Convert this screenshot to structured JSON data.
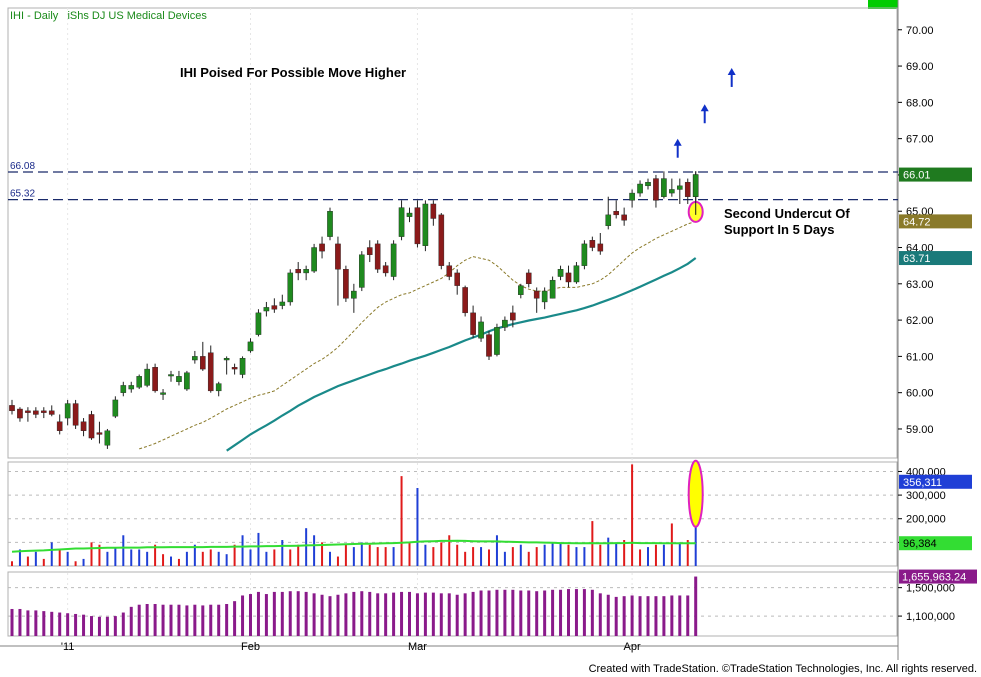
{
  "header": {
    "symbol": "IHI - Daily",
    "name": "iShs DJ US Medical Devices"
  },
  "annotations": {
    "headline": "IHI Poised For Possible Move Higher",
    "note_line1": "Second Undercut Of",
    "note_line2": "Support In 5 Days"
  },
  "credit": "Created with TradeStation. ©TradeStation Technologies, Inc. All rights reserved.",
  "colors": {
    "up": "#1f8a1f",
    "down": "#8b1a1a",
    "ma_long": "#1a8a8a",
    "ma_short": "#8a7a2a",
    "support_line": "#1a2a6a",
    "vol_avg": "#33dd33",
    "vol_up": "#1f3fd6",
    "vol_down": "#e01a1a",
    "osc": "#8a1a8a",
    "arrow": "#1030c8",
    "highlight": "#ffff00",
    "highlight_border": "#e020c0"
  },
  "chart_data": [
    {
      "type": "candlestick",
      "title": "IHI - Daily  iShs DJ US Medical Devices",
      "x_tick_labels": [
        "'11",
        "Feb",
        "Mar",
        "Apr"
      ],
      "y_ticks": [
        59.0,
        60.0,
        61.0,
        62.0,
        63.0,
        64.0,
        65.0,
        66.0,
        67.0,
        68.0,
        69.0,
        70.0
      ],
      "y_tick_labels": [
        "59.00",
        "60.00",
        "61.00",
        "62.00",
        "63.00",
        "64.00",
        "65.00",
        "66.00",
        "67.00",
        "68.00",
        "69.00",
        "70.00"
      ],
      "ylim": [
        58.2,
        70.6
      ],
      "support_lines": [
        {
          "label": "66.08",
          "value": 66.08
        },
        {
          "label": "65.32",
          "value": 65.32
        }
      ],
      "last_value_labels": [
        {
          "label": "66.01",
          "value": 66.01,
          "color": "#1f7a1f"
        },
        {
          "label": "64.72",
          "value": 64.72,
          "color": "#8a7a2a"
        },
        {
          "label": "63.71",
          "value": 63.71,
          "color": "#1a7a7a"
        }
      ],
      "bars": [
        [
          59.65,
          59.8,
          59.4,
          59.5
        ],
        [
          59.55,
          59.6,
          59.2,
          59.3
        ],
        [
          59.5,
          59.6,
          59.2,
          59.45
        ],
        [
          59.5,
          59.6,
          59.3,
          59.4
        ],
        [
          59.5,
          59.6,
          59.3,
          59.45
        ],
        [
          59.5,
          59.65,
          59.35,
          59.4
        ],
        [
          59.2,
          59.4,
          58.85,
          58.95
        ],
        [
          59.3,
          59.8,
          59.1,
          59.7
        ],
        [
          59.7,
          59.8,
          59.0,
          59.1
        ],
        [
          59.2,
          59.3,
          58.8,
          58.95
        ],
        [
          59.4,
          59.5,
          58.7,
          58.75
        ],
        [
          58.9,
          59.2,
          58.6,
          58.85
        ],
        [
          58.55,
          59.0,
          58.45,
          58.95
        ],
        [
          59.35,
          59.9,
          59.3,
          59.8
        ],
        [
          60.0,
          60.3,
          59.9,
          60.2
        ],
        [
          60.1,
          60.3,
          60.0,
          60.2
        ],
        [
          60.15,
          60.5,
          60.1,
          60.45
        ],
        [
          60.2,
          60.8,
          60.15,
          60.65
        ],
        [
          60.7,
          60.8,
          60.0,
          60.05
        ],
        [
          59.95,
          60.1,
          59.8,
          60.0
        ],
        [
          60.5,
          60.6,
          60.3,
          60.5
        ],
        [
          60.3,
          60.6,
          60.2,
          60.45
        ],
        [
          60.1,
          60.6,
          60.05,
          60.55
        ],
        [
          60.9,
          61.15,
          60.8,
          61.0
        ],
        [
          61.0,
          61.4,
          60.6,
          60.65
        ],
        [
          61.1,
          61.3,
          60.0,
          60.05
        ],
        [
          60.05,
          60.3,
          59.9,
          60.25
        ],
        [
          60.9,
          61.0,
          60.5,
          60.95
        ],
        [
          60.7,
          60.8,
          60.5,
          60.65
        ],
        [
          60.5,
          61.0,
          60.4,
          60.95
        ],
        [
          61.15,
          61.5,
          61.1,
          61.4
        ],
        [
          61.6,
          62.3,
          61.55,
          62.2
        ],
        [
          62.25,
          62.5,
          62.1,
          62.35
        ],
        [
          62.4,
          62.6,
          62.2,
          62.3
        ],
        [
          62.4,
          62.7,
          62.3,
          62.5
        ],
        [
          62.5,
          63.4,
          62.4,
          63.3
        ],
        [
          63.4,
          63.6,
          63.1,
          63.3
        ],
        [
          63.3,
          63.5,
          63.1,
          63.4
        ],
        [
          63.35,
          64.1,
          63.3,
          64.0
        ],
        [
          64.1,
          64.3,
          63.7,
          63.9
        ],
        [
          64.3,
          65.1,
          64.2,
          65.0
        ],
        [
          64.1,
          64.3,
          62.4,
          63.4
        ],
        [
          63.4,
          63.5,
          62.5,
          62.6
        ],
        [
          62.6,
          63.0,
          62.2,
          62.8
        ],
        [
          62.9,
          63.9,
          62.8,
          63.8
        ],
        [
          64.0,
          64.2,
          63.6,
          63.8
        ],
        [
          64.1,
          64.2,
          63.3,
          63.4
        ],
        [
          63.5,
          63.6,
          63.2,
          63.3
        ],
        [
          63.2,
          64.2,
          63.1,
          64.1
        ],
        [
          64.3,
          65.3,
          64.2,
          65.1
        ],
        [
          64.85,
          65.1,
          64.7,
          64.95
        ],
        [
          65.1,
          65.3,
          64.0,
          64.1
        ],
        [
          64.05,
          65.3,
          63.9,
          65.2
        ],
        [
          65.2,
          65.3,
          64.6,
          64.8
        ],
        [
          64.9,
          64.95,
          63.4,
          63.5
        ],
        [
          63.5,
          63.6,
          63.1,
          63.2
        ],
        [
          63.3,
          63.4,
          62.7,
          62.95
        ],
        [
          62.9,
          62.95,
          62.1,
          62.2
        ],
        [
          62.2,
          62.4,
          61.5,
          61.6
        ],
        [
          61.5,
          62.1,
          61.4,
          61.95
        ],
        [
          61.6,
          61.7,
          60.9,
          61.0
        ],
        [
          61.05,
          61.9,
          61.0,
          61.8
        ],
        [
          61.8,
          62.1,
          61.7,
          62.0
        ],
        [
          62.2,
          62.4,
          61.8,
          62.0
        ],
        [
          62.7,
          63.0,
          62.6,
          62.95
        ],
        [
          63.3,
          63.4,
          62.9,
          63.0
        ],
        [
          62.8,
          62.9,
          62.2,
          62.6
        ],
        [
          62.5,
          62.9,
          62.3,
          62.8
        ],
        [
          62.6,
          63.2,
          62.6,
          63.1
        ],
        [
          63.2,
          63.5,
          63.1,
          63.4
        ],
        [
          63.3,
          63.5,
          62.9,
          63.05
        ],
        [
          63.05,
          63.6,
          63.0,
          63.5
        ],
        [
          63.5,
          64.2,
          63.4,
          64.1
        ],
        [
          64.2,
          64.3,
          63.9,
          64.0
        ],
        [
          64.1,
          64.4,
          63.8,
          63.9
        ],
        [
          64.6,
          65.4,
          64.5,
          64.9
        ],
        [
          65.0,
          65.3,
          64.8,
          64.9
        ],
        [
          64.9,
          65.1,
          64.6,
          64.75
        ],
        [
          65.3,
          65.6,
          65.1,
          65.5
        ],
        [
          65.5,
          65.85,
          65.4,
          65.75
        ],
        [
          65.7,
          65.9,
          65.6,
          65.8
        ],
        [
          65.9,
          66.0,
          65.1,
          65.3
        ],
        [
          65.4,
          66.1,
          65.35,
          65.9
        ],
        [
          65.5,
          65.9,
          65.4,
          65.6
        ],
        [
          65.6,
          65.9,
          65.2,
          65.7
        ],
        [
          65.8,
          65.9,
          65.2,
          65.4
        ],
        [
          65.4,
          66.1,
          64.9,
          66.01
        ]
      ],
      "ma_long_values": [
        58.4,
        58.55,
        58.7,
        58.85,
        58.98,
        59.1,
        59.23,
        59.37,
        59.5,
        59.64,
        59.76,
        59.88,
        59.98,
        60.08,
        60.18,
        60.26,
        60.34,
        60.42,
        60.5,
        60.58,
        60.65,
        60.73,
        60.8,
        60.88,
        60.95,
        61.02,
        61.1,
        61.18,
        61.26,
        61.35,
        61.44,
        61.52,
        61.6,
        61.69,
        61.77,
        61.83,
        61.89,
        61.94,
        61.99,
        62.03,
        62.07,
        62.12,
        62.17,
        62.22,
        62.27,
        62.33,
        62.4,
        62.48,
        62.56,
        62.64,
        62.73,
        62.82,
        62.92,
        63.02,
        63.12,
        63.22,
        63.32,
        63.43,
        63.55,
        63.71
      ],
      "ma_long_start": 27,
      "ma_short_values": [
        58.45,
        58.52,
        58.6,
        58.7,
        58.8,
        58.9,
        59.0,
        59.1,
        59.18,
        59.3,
        59.42,
        59.55,
        59.65,
        59.75,
        59.85,
        59.93,
        59.98,
        60.05,
        60.2,
        60.35,
        60.5,
        60.65,
        60.8,
        60.92,
        61.07,
        61.25,
        61.47,
        61.7,
        61.93,
        62.15,
        62.35,
        62.5,
        62.6,
        62.7,
        62.75,
        62.85,
        62.95,
        63.05,
        63.15,
        63.3,
        63.5,
        63.65,
        63.75,
        63.7,
        63.65,
        63.5,
        63.3,
        63.1,
        62.95,
        62.85,
        62.8,
        62.8,
        62.85,
        62.9,
        62.9,
        62.9,
        62.95,
        63.0,
        63.1,
        63.25,
        63.45,
        63.65,
        63.85,
        64.0,
        64.12,
        64.25,
        64.35,
        64.45,
        64.55,
        64.65,
        64.72
      ],
      "ma_short_start": 16,
      "arrows_after_last": [
        66.75,
        67.7,
        68.7
      ]
    },
    {
      "type": "bar",
      "name": "Volume",
      "y_ticks": [
        100000,
        200000,
        300000,
        400000
      ],
      "y_tick_labels": [
        "",
        "200,000",
        "300,000",
        "400,000"
      ],
      "ylim": [
        0,
        440000
      ],
      "last_value_labels": [
        {
          "label": "356,311",
          "value": 356311,
          "color": "#1f3fd6"
        },
        {
          "label": "96,384",
          "value": 96384,
          "color": "#33dd33"
        }
      ],
      "values": [
        20000,
        70000,
        40000,
        60000,
        30000,
        100000,
        70000,
        60000,
        20000,
        30000,
        100000,
        90000,
        60000,
        80000,
        130000,
        70000,
        70000,
        60000,
        90000,
        50000,
        40000,
        30000,
        60000,
        90000,
        60000,
        70000,
        60000,
        50000,
        90000,
        130000,
        70000,
        140000,
        60000,
        70000,
        110000,
        70000,
        90000,
        160000,
        130000,
        100000,
        60000,
        40000,
        90000,
        80000,
        100000,
        90000,
        80000,
        80000,
        80000,
        380000,
        100000,
        330000,
        90000,
        80000,
        100000,
        130000,
        90000,
        60000,
        80000,
        80000,
        70000,
        130000,
        60000,
        80000,
        90000,
        60000,
        80000,
        90000,
        100000,
        100000,
        90000,
        80000,
        80000,
        190000,
        90000,
        120000,
        100000,
        110000,
        430000,
        70000,
        80000,
        90000,
        90000,
        180000,
        100000,
        110000,
        356311
      ],
      "up": [
        false,
        true,
        false,
        true,
        false,
        true,
        false,
        true,
        false,
        true,
        false,
        false,
        true,
        true,
        true,
        true,
        true,
        true,
        false,
        false,
        true,
        false,
        true,
        true,
        false,
        false,
        true,
        true,
        false,
        true,
        true,
        true,
        true,
        false,
        true,
        false,
        false,
        true,
        true,
        false,
        true,
        false,
        false,
        true,
        true,
        false,
        false,
        false,
        true,
        false,
        false,
        true,
        true,
        false,
        false,
        false,
        false,
        false,
        false,
        true,
        false,
        true,
        true,
        false,
        true,
        false,
        false,
        true,
        true,
        true,
        false,
        true,
        true,
        false,
        false,
        true,
        true,
        false,
        false,
        false,
        true,
        false,
        true,
        false,
        true,
        false,
        true
      ],
      "avg_values": [
        60000,
        62000,
        64000,
        65000,
        66000,
        68000,
        70000,
        72000,
        74000,
        74000,
        75000,
        76000,
        77000,
        77000,
        78000,
        78000,
        78000,
        79000,
        79000,
        79000,
        80000,
        80000,
        80000,
        80000,
        80000,
        81000,
        81000,
        81000,
        82000,
        82000,
        83000,
        83000,
        84000,
        84000,
        85000,
        85000,
        86000,
        87000,
        88000,
        89000,
        90000,
        91000,
        92000,
        93000,
        94000,
        94000,
        95000,
        96000,
        97000,
        98000,
        100000,
        103000,
        104000,
        105000,
        106000,
        106000,
        107000,
        106000,
        105000,
        104000,
        104000,
        104000,
        103000,
        102000,
        101000,
        100000,
        100000,
        99000,
        98000,
        97000,
        97000,
        96000,
        96000,
        97000,
        96000,
        96000,
        97000,
        97000,
        98000,
        97000,
        97000,
        97000,
        96000,
        96000,
        96000,
        96000,
        96384
      ]
    },
    {
      "type": "bar",
      "name": "Accumulation",
      "y_ticks": [
        1100000,
        1500000
      ],
      "y_tick_labels": [
        "1,100,000",
        "1,500,000"
      ],
      "ylim": [
        820000,
        1720000
      ],
      "last_value_labels": [
        {
          "label": "1,655,963.24",
          "value": 1655963.24,
          "color": "#8a1a8a"
        }
      ],
      "values": [
        1200000,
        1200000,
        1180000,
        1180000,
        1170000,
        1160000,
        1150000,
        1140000,
        1130000,
        1120000,
        1100000,
        1090000,
        1090000,
        1100000,
        1150000,
        1230000,
        1260000,
        1270000,
        1270000,
        1260000,
        1260000,
        1260000,
        1250000,
        1260000,
        1250000,
        1260000,
        1260000,
        1270000,
        1310000,
        1390000,
        1410000,
        1440000,
        1410000,
        1440000,
        1440000,
        1450000,
        1450000,
        1440000,
        1420000,
        1400000,
        1380000,
        1400000,
        1420000,
        1440000,
        1450000,
        1440000,
        1420000,
        1420000,
        1430000,
        1440000,
        1440000,
        1420000,
        1430000,
        1430000,
        1420000,
        1420000,
        1400000,
        1420000,
        1440000,
        1460000,
        1460000,
        1470000,
        1470000,
        1470000,
        1460000,
        1460000,
        1450000,
        1460000,
        1470000,
        1470000,
        1480000,
        1480000,
        1480000,
        1470000,
        1420000,
        1400000,
        1370000,
        1380000,
        1390000,
        1380000,
        1380000,
        1380000,
        1380000,
        1390000,
        1390000,
        1390000,
        1655963.24
      ]
    }
  ]
}
